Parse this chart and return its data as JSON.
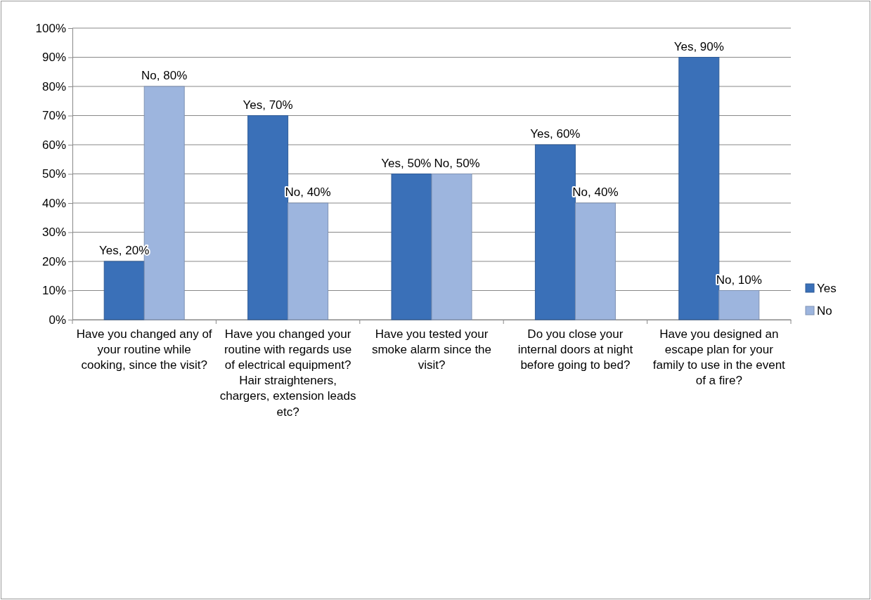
{
  "chart_data": {
    "type": "bar",
    "categories": [
      "Have you changed any of your routine while cooking, since the visit?",
      "Have you changed your routine with regards use of electrical equipment? Hair straighteners, chargers, extension leads etc?",
      "Have you tested your smoke alarm since the visit?",
      "Do you close your internal doors at night before going to bed?",
      "Have you designed an escape plan for your family to use in the event of a fire?"
    ],
    "series": [
      {
        "name": "Yes",
        "color": "#3a70b8",
        "values": [
          20,
          70,
          50,
          60,
          90
        ],
        "value_labels": [
          "Yes, 20%",
          "Yes, 70%",
          "Yes, 50%",
          "Yes, 60%",
          "Yes, 90%"
        ]
      },
      {
        "name": "No",
        "color": "#9db5de",
        "values": [
          80,
          40,
          50,
          40,
          10
        ],
        "value_labels": [
          "No, 80%",
          "No, 40%",
          "No, 50%",
          "No, 40%",
          "No, 10%"
        ]
      }
    ],
    "ylim": [
      0,
      100
    ],
    "yticks": [
      {
        "value": 0,
        "label": "0%"
      },
      {
        "value": 10,
        "label": "10%"
      },
      {
        "value": 20,
        "label": "20%"
      },
      {
        "value": 30,
        "label": "30%"
      },
      {
        "value": 40,
        "label": "40%"
      },
      {
        "value": 50,
        "label": "50%"
      },
      {
        "value": 60,
        "label": "60%"
      },
      {
        "value": 70,
        "label": "70%"
      },
      {
        "value": 80,
        "label": "80%"
      },
      {
        "value": 90,
        "label": "90%"
      },
      {
        "value": 100,
        "label": "100%"
      }
    ],
    "grid": "y",
    "legend": "right"
  }
}
